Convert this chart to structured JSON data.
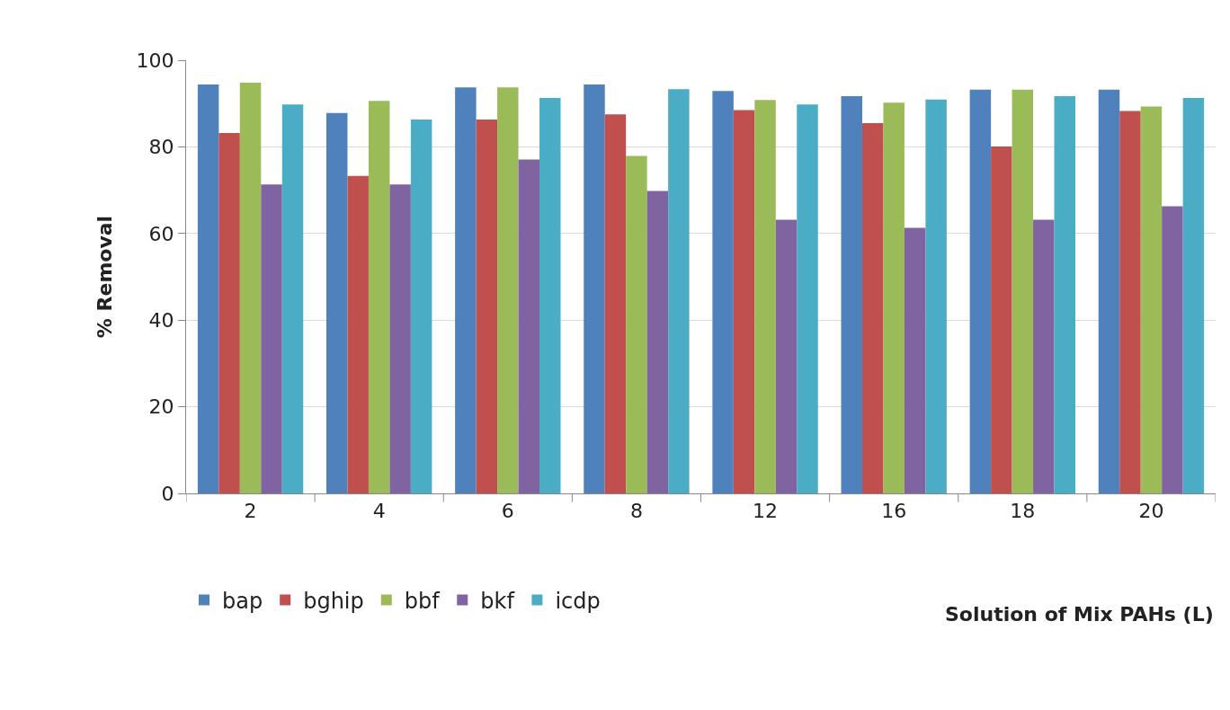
{
  "chart_data": {
    "type": "bar",
    "xlabel": "Solution of Mix PAHs (L)",
    "ylabel": "% Removal",
    "categories": [
      "2",
      "4",
      "6",
      "8",
      "12",
      "16",
      "18",
      "20"
    ],
    "series": [
      {
        "name": "bap",
        "color": "#4f81bd",
        "values": [
          94.4,
          87.8,
          93.7,
          94.4,
          92.9,
          91.7,
          93.2,
          93.2
        ]
      },
      {
        "name": "bghip",
        "color": "#c0504d",
        "values": [
          83.2,
          73.3,
          86.3,
          87.5,
          88.5,
          85.5,
          80.1,
          88.3
        ]
      },
      {
        "name": "bbf",
        "color": "#9bbb59",
        "values": [
          94.8,
          90.6,
          93.7,
          77.9,
          90.8,
          90.2,
          93.2,
          89.3
        ]
      },
      {
        "name": "bkf",
        "color": "#8064a2",
        "values": [
          71.3,
          71.3,
          77.1,
          69.8,
          63.2,
          61.3,
          63.2,
          66.3
        ]
      },
      {
        "name": "icdp",
        "color": "#4bacc6",
        "values": [
          89.8,
          86.3,
          91.3,
          93.3,
          89.8,
          90.9,
          91.7,
          91.3
        ]
      }
    ],
    "ylim": [
      0,
      100
    ],
    "yticks": [
      0,
      20,
      40,
      60,
      80,
      100
    ],
    "grid": "y",
    "legend": "bottom"
  }
}
